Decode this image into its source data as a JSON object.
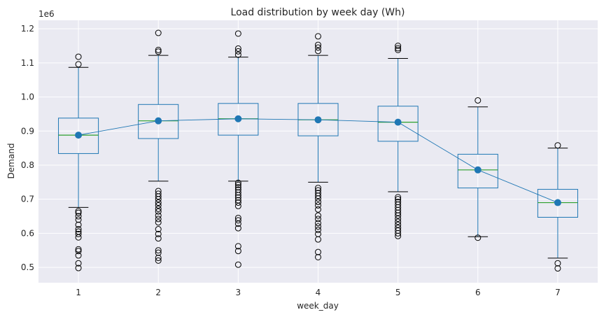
{
  "chart_data": {
    "type": "box",
    "title": "Load distribution by week day (Wh)",
    "xlabel": "week_day",
    "ylabel": "Demand",
    "y_offset_label": "1e6",
    "ylim": [
      0.455,
      1.225
    ],
    "yticks": [
      0.5,
      0.6,
      0.7,
      0.8,
      0.9,
      1.0,
      1.1,
      1.2
    ],
    "ytick_labels": [
      "0.5",
      "0.6",
      "0.7",
      "0.8",
      "0.9",
      "1.0",
      "1.1",
      "1.2"
    ],
    "grid": true,
    "colors": {
      "background": "#eaeaf2",
      "grid": "#ffffff",
      "box": "#1f77b4",
      "median": "#2ca02c",
      "mean_line": "#1f77b4",
      "mean_marker": "#1f77b4",
      "flier": "#000000",
      "text": "#262626"
    },
    "categories": [
      "1",
      "2",
      "3",
      "4",
      "5",
      "6",
      "7"
    ],
    "boxes": [
      {
        "day": "1",
        "whisker_low": 0.676,
        "q1": 0.834,
        "median": 0.888,
        "q3": 0.938,
        "whisker_high": 1.087,
        "mean": 0.888,
        "fliers": [
          1.118,
          1.096,
          0.665,
          0.66,
          0.65,
          0.64,
          0.625,
          0.612,
          0.605,
          0.598,
          0.588,
          0.553,
          0.548,
          0.535,
          0.512,
          0.498
        ]
      },
      {
        "day": "2",
        "whisker_low": 0.753,
        "q1": 0.878,
        "median": 0.93,
        "q3": 0.978,
        "whisker_high": 1.122,
        "mean": 0.93,
        "fliers": [
          1.188,
          1.138,
          1.133,
          0.724,
          0.716,
          0.708,
          0.7,
          0.69,
          0.682,
          0.672,
          0.664,
          0.652,
          0.642,
          0.632,
          0.612,
          0.598,
          0.585,
          0.55,
          0.543,
          0.528,
          0.52
        ]
      },
      {
        "day": "3",
        "whisker_low": 0.753,
        "q1": 0.888,
        "median": 0.936,
        "q3": 0.981,
        "whisker_high": 1.117,
        "mean": 0.936,
        "fliers": [
          1.186,
          1.142,
          1.134,
          1.124,
          0.748,
          0.742,
          0.735,
          0.728,
          0.72,
          0.712,
          0.705,
          0.697,
          0.69,
          0.68,
          0.645,
          0.638,
          0.628,
          0.615,
          0.562,
          0.548,
          0.508
        ]
      },
      {
        "day": "4",
        "whisker_low": 0.75,
        "q1": 0.886,
        "median": 0.933,
        "q3": 0.981,
        "whisker_high": 1.122,
        "mean": 0.933,
        "fliers": [
          1.178,
          1.153,
          1.145,
          1.135,
          0.733,
          0.726,
          0.718,
          0.71,
          0.702,
          0.692,
          0.682,
          0.67,
          0.652,
          0.642,
          0.63,
          0.62,
          0.61,
          0.598,
          0.582,
          0.545,
          0.53
        ]
      },
      {
        "day": "5",
        "whisker_low": 0.722,
        "q1": 0.87,
        "median": 0.926,
        "q3": 0.973,
        "whisker_high": 1.113,
        "mean": 0.926,
        "fliers": [
          1.15,
          1.143,
          1.138,
          0.706,
          0.7,
          0.692,
          0.684,
          0.676,
          0.668,
          0.66,
          0.652,
          0.643,
          0.634,
          0.625,
          0.616,
          0.608,
          0.6,
          0.592
        ]
      },
      {
        "day": "6",
        "whisker_low": 0.59,
        "q1": 0.733,
        "median": 0.786,
        "q3": 0.832,
        "whisker_high": 0.971,
        "mean": 0.786,
        "fliers": [
          0.99,
          0.587
        ]
      },
      {
        "day": "7",
        "whisker_low": 0.527,
        "q1": 0.647,
        "median": 0.69,
        "q3": 0.729,
        "whisker_high": 0.85,
        "mean": 0.69,
        "fliers": [
          0.858,
          0.512,
          0.497
        ]
      }
    ]
  }
}
